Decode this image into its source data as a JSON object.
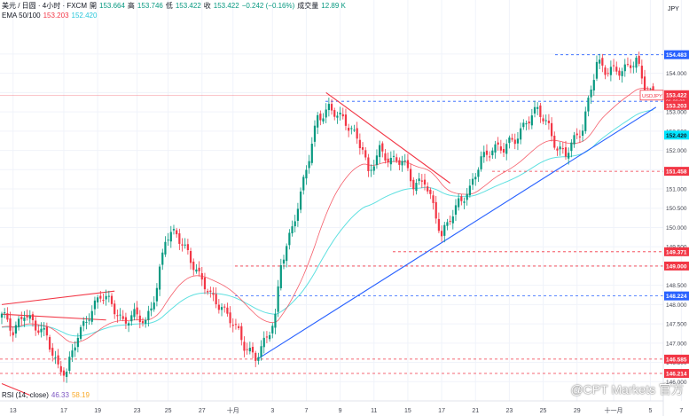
{
  "header": {
    "line1": {
      "symbol": "美元 / 日圆 · 4小时 · FXCM",
      "open_label": "開",
      "open": "153.664",
      "high_label": "高",
      "high": "153.746",
      "low_label": "低",
      "low": "153.422",
      "close_label": "收",
      "close": "153.422",
      "change": "−0.242 (−0.16%)",
      "volume_label": "成交量",
      "volume": "12.89 K"
    },
    "line2": {
      "label": "EMA 50/100",
      "ema50": "153.203",
      "ema100": "152.420"
    },
    "rsi": {
      "label": "RSI (14, close)",
      "v1": "46.33",
      "v2": "58.19"
    }
  },
  "watermark": "@CPT Markets 官方",
  "colors": {
    "up": "#089981",
    "down": "#f23645",
    "ema50": "#f23645",
    "ema100": "#5fe0e0",
    "trend_blue": "#2962ff",
    "trend_red": "#f23645",
    "level_red": "#f23645",
    "level_blue": "#2962ff",
    "price_tag": "#f23645",
    "ema100_tag": "#00e5ff"
  },
  "chart_data": {
    "type": "candlestick",
    "currency": "JPY",
    "ylim": [
      145.5,
      155.35
    ],
    "y_ticks": [
      146.0,
      146.5,
      147.0,
      147.5,
      148.0,
      148.5,
      149.0,
      149.5,
      150.0,
      150.5,
      151.0,
      151.5,
      152.0,
      152.5,
      153.0,
      153.5,
      154.0,
      154.5
    ],
    "y_tick_labels": [
      "146.000",
      "146.500",
      "147.000",
      "147.500",
      "148.000",
      "148.500",
      "149.000",
      "149.500",
      "150.000",
      "150.500",
      "151.000",
      "151.500",
      "152.000",
      "152.500",
      "153.000",
      "153.500",
      "154.000",
      "154.500"
    ],
    "x_ticks": [
      {
        "label": "13",
        "i": 4
      },
      {
        "label": "17",
        "i": 22
      },
      {
        "label": "19",
        "i": 34
      },
      {
        "label": "23",
        "i": 48
      },
      {
        "label": "25",
        "i": 59
      },
      {
        "label": "27",
        "i": 71
      },
      {
        "label": "十月",
        "i": 82
      },
      {
        "label": "3",
        "i": 96
      },
      {
        "label": "7",
        "i": 108
      },
      {
        "label": "9",
        "i": 120
      },
      {
        "label": "11",
        "i": 132
      },
      {
        "label": "15",
        "i": 144
      },
      {
        "label": "17",
        "i": 156
      },
      {
        "label": "21",
        "i": 168
      },
      {
        "label": "23",
        "i": 180
      },
      {
        "label": "25",
        "i": 192
      },
      {
        "label": "29",
        "i": 204
      },
      {
        "label": "十一月",
        "i": 217
      },
      {
        "label": "5",
        "i": 230
      },
      {
        "label": "7",
        "i": 241
      }
    ],
    "anchors": [
      [
        0,
        147.7
      ],
      [
        4,
        147.3
      ],
      [
        8,
        147.85
      ],
      [
        12,
        147.35
      ],
      [
        16,
        147.2
      ],
      [
        20,
        146.4
      ],
      [
        23,
        146.2
      ],
      [
        27,
        147.2
      ],
      [
        31,
        147.8
      ],
      [
        35,
        148.2
      ],
      [
        39,
        148.0
      ],
      [
        43,
        147.6
      ],
      [
        47,
        147.7
      ],
      [
        51,
        147.5
      ],
      [
        55,
        148.5
      ],
      [
        58,
        149.7
      ],
      [
        62,
        149.8
      ],
      [
        66,
        149.4
      ],
      [
        70,
        148.7
      ],
      [
        74,
        148.2
      ],
      [
        78,
        148.0
      ],
      [
        82,
        147.5
      ],
      [
        86,
        146.9
      ],
      [
        90,
        146.7
      ],
      [
        94,
        147.1
      ],
      [
        97,
        147.6
      ],
      [
        99,
        149.1
      ],
      [
        102,
        149.8
      ],
      [
        106,
        150.8
      ],
      [
        109,
        151.8
      ],
      [
        112,
        152.9
      ],
      [
        116,
        153.1
      ],
      [
        120,
        152.8
      ],
      [
        124,
        152.6
      ],
      [
        128,
        152.1
      ],
      [
        130,
        151.3
      ],
      [
        134,
        152.0
      ],
      [
        138,
        151.8
      ],
      [
        142,
        151.7
      ],
      [
        146,
        151.1
      ],
      [
        150,
        151.3
      ],
      [
        153,
        150.5
      ],
      [
        156,
        149.7
      ],
      [
        159,
        150.3
      ],
      [
        162,
        150.7
      ],
      [
        166,
        150.9
      ],
      [
        170,
        151.8
      ],
      [
        174,
        152.1
      ],
      [
        178,
        152.0
      ],
      [
        182,
        152.3
      ],
      [
        186,
        152.8
      ],
      [
        190,
        153.0
      ],
      [
        194,
        152.6
      ],
      [
        197,
        152.1
      ],
      [
        200,
        151.9
      ],
      [
        203,
        152.2
      ],
      [
        206,
        152.6
      ],
      [
        209,
        153.7
      ],
      [
        211,
        154.3
      ],
      [
        214,
        154.0
      ],
      [
        218,
        154.1
      ],
      [
        222,
        154.2
      ],
      [
        225,
        154.3
      ],
      [
        227,
        153.8
      ],
      [
        229,
        153.5
      ],
      [
        231,
        153.42
      ]
    ],
    "horizontal_levels": [
      {
        "value": 154.483,
        "label": "154.483",
        "style": "blue-dashed"
      },
      {
        "value": 153.274,
        "label": "153.274",
        "style": "blue-dashed"
      },
      {
        "value": 151.458,
        "label": "151.458",
        "style": "red-dashed"
      },
      {
        "value": 149.371,
        "label": "149.371",
        "style": "red-dashed"
      },
      {
        "value": 149.0,
        "label": "149.000",
        "style": "red-dashed"
      },
      {
        "value": 148.224,
        "label": "148.224",
        "style": "blue-dashed"
      },
      {
        "value": 146.585,
        "label": "146.585",
        "style": "red-dashed"
      },
      {
        "value": 146.214,
        "label": "146.214",
        "style": "red-dashed"
      }
    ],
    "price_tags": [
      {
        "value": 153.422,
        "label": "153.422",
        "sub": "01:29:08",
        "symbol": "USDJPY",
        "role": "last-price"
      },
      {
        "value": 153.203,
        "label": "153.203",
        "role": "ema50"
      },
      {
        "value": 152.42,
        "label": "152.420",
        "role": "ema100"
      }
    ],
    "trendlines": [
      {
        "color": "blue",
        "from": [
          91,
          146.6
        ],
        "to": [
          232,
          153.12
        ]
      },
      {
        "color": "red",
        "from": [
          115,
          153.5
        ],
        "to": [
          159,
          151.15
        ]
      },
      {
        "color": "red",
        "from": [
          0,
          148.0
        ],
        "to": [
          40,
          148.35
        ]
      },
      {
        "color": "red",
        "from": [
          0,
          147.75
        ],
        "to": [
          37,
          147.6
        ]
      },
      {
        "color": "red",
        "from": [
          0,
          145.95
        ],
        "to": [
          10,
          145.65
        ]
      }
    ]
  }
}
